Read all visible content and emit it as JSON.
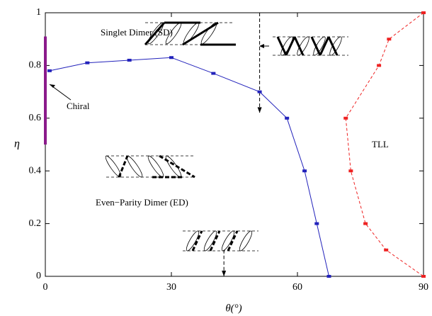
{
  "chart_data": {
    "type": "line",
    "xlabel": "θ(°)",
    "ylabel": "η",
    "annotations": [
      "Singlet Dimer (SD)",
      "Chiral",
      "Even−Parity Dimer (ED)",
      "TLL"
    ],
    "xlim": [
      0,
      90
    ],
    "xticks": [
      0,
      30,
      60,
      90
    ],
    "ylim": [
      0,
      1
    ],
    "yticks": [
      0,
      0.2,
      0.4,
      0.6,
      0.8,
      1
    ],
    "series": [
      {
        "color": "#2222bb",
        "style": "solid",
        "x": [
          1,
          10,
          20,
          30,
          40,
          51,
          57.5,
          61.7,
          64.6,
          67.5
        ],
        "values": [
          0.78,
          0.81,
          0.82,
          0.83,
          0.77,
          0.7,
          0.6,
          0.4,
          0.2,
          0
        ]
      },
      {
        "color": "#ee2222",
        "style": "dashed",
        "x": [
          90,
          81.8,
          79.4,
          71.5,
          72.7,
          76.2,
          81.1,
          90
        ],
        "values": [
          1,
          0.9,
          0.8,
          0.6,
          0.4,
          0.2,
          0.1,
          0
        ]
      }
    ],
    "chiral": {
      "x": 0,
      "range": [
        0.5,
        0.91
      ],
      "color": "#8b1a8b"
    },
    "arrows": [
      {
        "x": 51,
        "from": 1,
        "to": 0.62
      },
      {
        "x": 42.5,
        "from": 0.1,
        "to": 0
      }
    ]
  }
}
